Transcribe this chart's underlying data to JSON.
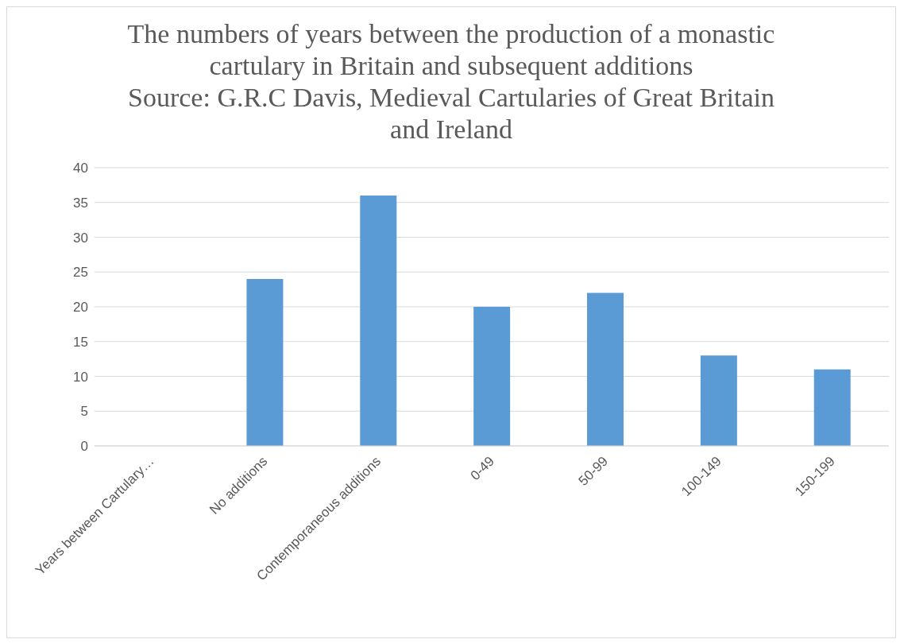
{
  "chart_data": {
    "type": "bar",
    "title": "The numbers of years between the production of a monastic cartulary in Britain and subsequent additions",
    "subtitle": "Source: G.R.C Davis, Medieval Cartularies of Great Britain and Ireland",
    "categories": [
      "Years between Cartulary…",
      "No additions",
      "Contemporaneous additions",
      "0-49",
      "50-99",
      "100-149",
      "150-199"
    ],
    "values": [
      null,
      24,
      36,
      20,
      22,
      13,
      11
    ],
    "color": "#5b9bd5",
    "ylim": [
      0,
      40
    ],
    "yticks": [
      0,
      5,
      10,
      15,
      20,
      25,
      30,
      35,
      40
    ],
    "grid": "y",
    "legend": false
  }
}
